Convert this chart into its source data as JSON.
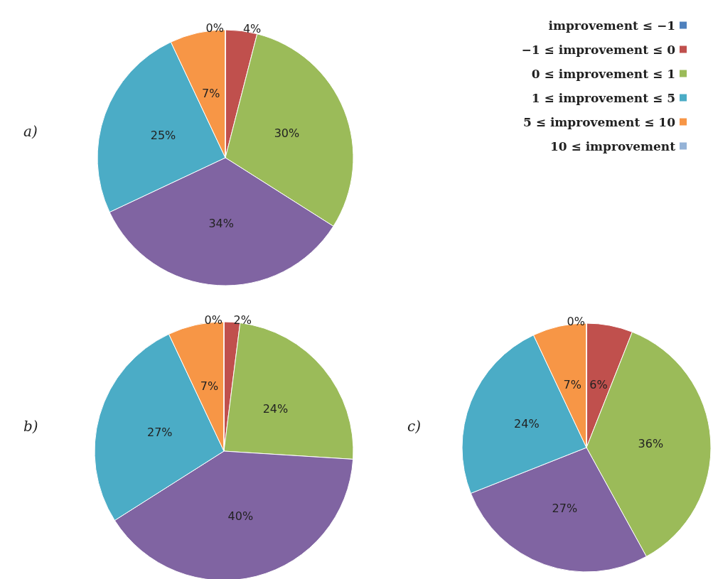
{
  "chart_data": [
    {
      "type": "pie",
      "title": "a)",
      "categories": [
        "improvement ≤ −1",
        "−1 ≤ improvement ≤ 0",
        "0 ≤ improvement ≤ 1",
        null,
        "1 ≤ improvement ≤ 5",
        "5 ≤ improvement ≤ 10",
        "10 ≤ improvement"
      ],
      "values": [
        0,
        4,
        30,
        34,
        25,
        7,
        0
      ],
      "value_labels": [
        "0%",
        "4%",
        "30%",
        "34%",
        "25%",
        "7%",
        null
      ],
      "colors": [
        "#4f81bd",
        "#c0504d",
        "#9bbb59",
        "#8064a2",
        "#4bacc6",
        "#f79646",
        "#95b3d7"
      ],
      "legend": "top right"
    },
    {
      "type": "pie",
      "title": "b)",
      "categories": [
        null,
        null,
        null,
        null,
        null,
        null,
        null
      ],
      "values": [
        0,
        2,
        24,
        40,
        27,
        7,
        0
      ],
      "value_labels": [
        "0%",
        "2%",
        "24%",
        "40%",
        "27%",
        "7%",
        null
      ],
      "colors": [
        "#4f81bd",
        "#c0504d",
        "#9bbb59",
        "#8064a2",
        "#4bacc6",
        "#f79646",
        "#95b3d7"
      ]
    },
    {
      "type": "pie",
      "title": "c)",
      "categories": [
        null,
        null,
        null,
        null,
        null,
        null,
        null
      ],
      "values": [
        0,
        6,
        36,
        27,
        24,
        7,
        0
      ],
      "value_labels": [
        "0%",
        "6%",
        "36%",
        "27%",
        "24%",
        "7%",
        null
      ],
      "colors": [
        "#4f81bd",
        "#c0504d",
        "#9bbb59",
        "#8064a2",
        "#4bacc6",
        "#f79646",
        "#95b3d7"
      ]
    }
  ]
}
